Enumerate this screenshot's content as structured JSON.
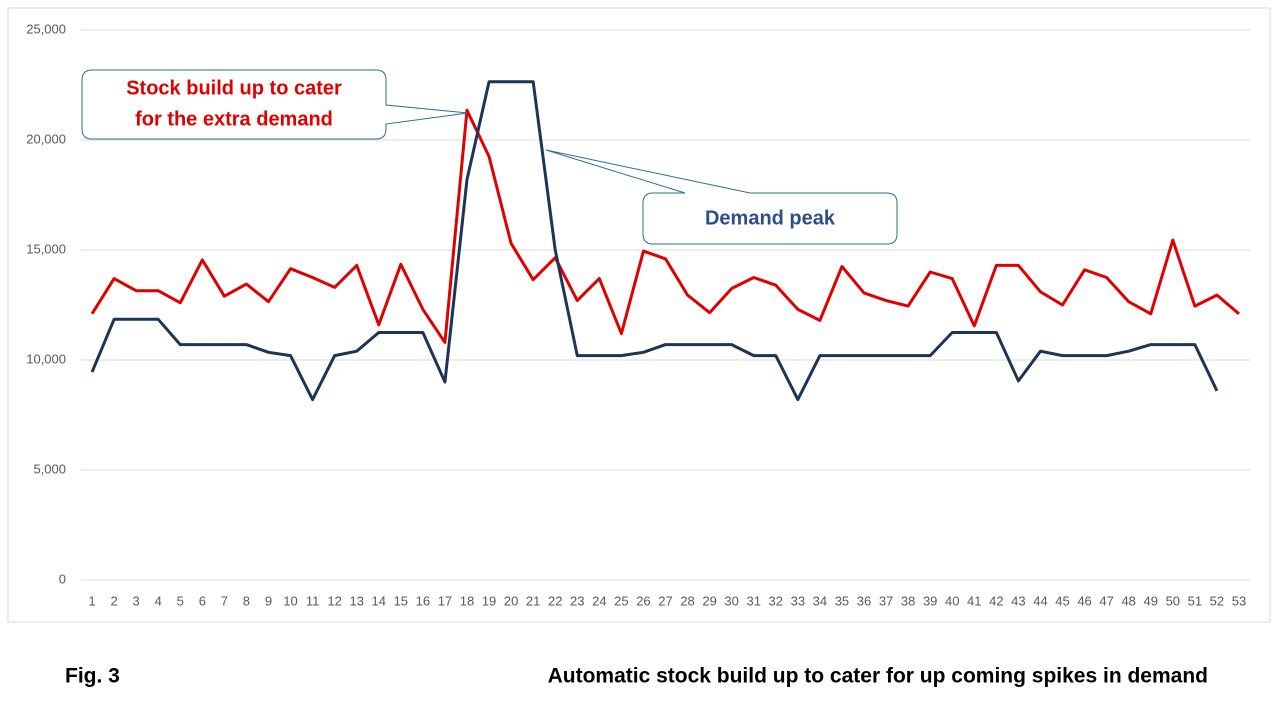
{
  "chart_data": {
    "type": "line",
    "categories": [
      "1",
      "2",
      "3",
      "4",
      "5",
      "6",
      "7",
      "8",
      "9",
      "10",
      "11",
      "12",
      "13",
      "14",
      "15",
      "16",
      "17",
      "18",
      "19",
      "20",
      "21",
      "22",
      "23",
      "24",
      "25",
      "26",
      "27",
      "28",
      "29",
      "30",
      "31",
      "32",
      "33",
      "34",
      "35",
      "36",
      "37",
      "38",
      "39",
      "40",
      "41",
      "42",
      "43",
      "44",
      "45",
      "46",
      "47",
      "48",
      "49",
      "50",
      "51",
      "52",
      "53"
    ],
    "series": [
      {
        "color": "#e00000",
        "values": [
          12100,
          13700,
          13150,
          13150,
          12600,
          14550,
          12900,
          13450,
          12650,
          14150,
          13750,
          13300,
          14300,
          11600,
          14350,
          12300,
          10800,
          21350,
          19250,
          15300,
          13650,
          14650,
          12700,
          13700,
          11200,
          14950,
          14600,
          12950,
          12150,
          13250,
          13750,
          13400,
          12300,
          11800,
          14250,
          13050,
          12700,
          12450,
          14000,
          13700,
          11550,
          14300,
          14300,
          13100,
          12500,
          14100,
          13750,
          12650,
          12100,
          15450,
          12450,
          12950,
          12100
        ]
      },
      {
        "color": "#1c3557",
        "values": [
          9450,
          11850,
          11850,
          11850,
          10700,
          10700,
          10700,
          10700,
          10350,
          10200,
          8200,
          10200,
          10400,
          11250,
          11250,
          11250,
          9000,
          18200,
          22650,
          22650,
          22650,
          15000,
          10200,
          10200,
          10200,
          10350,
          10700,
          10700,
          10700,
          10700,
          10200,
          10200,
          8200,
          10200,
          10200,
          10200,
          10200,
          10200,
          10200,
          11250,
          11250,
          11250,
          9050,
          10400,
          10200,
          10200,
          10200,
          10400,
          10700,
          10700,
          10700,
          8600,
          null
        ]
      }
    ],
    "ylim": [
      0,
      25000
    ],
    "yticks": [
      0,
      {
        "value": 5000,
        "label": "5,000"
      },
      {
        "value": 10000,
        "label": "10,000"
      },
      {
        "value": 15000,
        "label": "15,000"
      },
      {
        "value": 20000,
        "label": "20,000"
      },
      {
        "value": 25000,
        "label": "25,000"
      }
    ],
    "grid": true,
    "annotations": [
      {
        "lines": [
          "Stock build up to cater",
          "for the extra demand"
        ],
        "color": "#e00000"
      },
      {
        "lines": [
          "Demand peak"
        ],
        "color": "#2e4e8a"
      }
    ],
    "figure_label": "Fig. 3",
    "caption": "Automatic stock build up to cater for up coming spikes in demand"
  }
}
